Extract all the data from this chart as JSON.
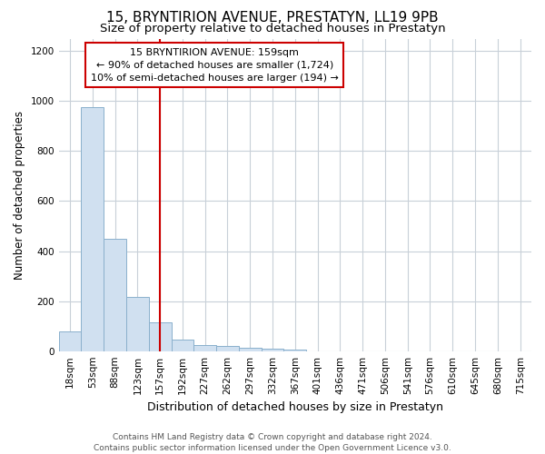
{
  "title": "15, BRYNTIRION AVENUE, PRESTATYN, LL19 9PB",
  "subtitle": "Size of property relative to detached houses in Prestatyn",
  "xlabel": "Distribution of detached houses by size in Prestatyn",
  "ylabel": "Number of detached properties",
  "bins": [
    "18sqm",
    "53sqm",
    "88sqm",
    "123sqm",
    "157sqm",
    "192sqm",
    "227sqm",
    "262sqm",
    "297sqm",
    "332sqm",
    "367sqm",
    "401sqm",
    "436sqm",
    "471sqm",
    "506sqm",
    "541sqm",
    "576sqm",
    "610sqm",
    "645sqm",
    "680sqm",
    "715sqm"
  ],
  "values": [
    80,
    975,
    450,
    215,
    115,
    45,
    25,
    20,
    15,
    8,
    5,
    0,
    0,
    0,
    0,
    0,
    0,
    0,
    0,
    0,
    0
  ],
  "bar_color": "#d0e0f0",
  "bar_edge_color": "#8ab0cc",
  "vline_x_index": 4,
  "vline_color": "#cc0000",
  "annotation_line1": "15 BRYNTIRION AVENUE: 159sqm",
  "annotation_line2": "← 90% of detached houses are smaller (1,724)",
  "annotation_line3": "10% of semi-detached houses are larger (194) →",
  "annotation_box_color": "#cc0000",
  "ylim": [
    0,
    1250
  ],
  "yticks": [
    0,
    200,
    400,
    600,
    800,
    1000,
    1200
  ],
  "grid_color": "#c8d0d8",
  "bg_color": "#ffffff",
  "footer_line1": "Contains HM Land Registry data © Crown copyright and database right 2024.",
  "footer_line2": "Contains public sector information licensed under the Open Government Licence v3.0.",
  "title_fontsize": 11,
  "subtitle_fontsize": 9.5,
  "xlabel_fontsize": 9,
  "ylabel_fontsize": 8.5,
  "tick_fontsize": 7.5,
  "footer_fontsize": 6.5
}
